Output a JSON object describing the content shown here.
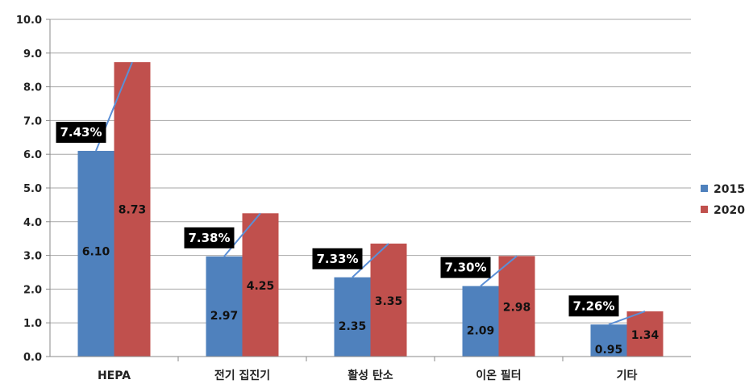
{
  "chart_data": {
    "type": "bar",
    "categories": [
      "HEPA",
      "전기 집진기",
      "활성 탄소",
      "이온 필터",
      "기타"
    ],
    "series": [
      {
        "name": "2015",
        "values": [
          6.1,
          2.97,
          2.35,
          2.09,
          0.95
        ],
        "labels": [
          "6.10",
          "2.97",
          "2.35",
          "2.09",
          "0.95"
        ],
        "color": "#4F81BD"
      },
      {
        "name": "2020",
        "values": [
          8.73,
          4.25,
          3.35,
          2.98,
          1.34
        ],
        "labels": [
          "8.73",
          "4.25",
          "3.35",
          "2.98",
          "1.34"
        ],
        "color": "#C0504D"
      }
    ],
    "growth_labels": [
      "7.43%",
      "7.38%",
      "7.33%",
      "7.30%",
      "7.26%"
    ],
    "ylim": [
      0,
      10
    ],
    "yticks": [
      "0.0",
      "1.0",
      "2.0",
      "3.0",
      "4.0",
      "5.0",
      "6.0",
      "7.0",
      "8.0",
      "9.0",
      "10.0"
    ],
    "grid": true,
    "legend": "right"
  }
}
